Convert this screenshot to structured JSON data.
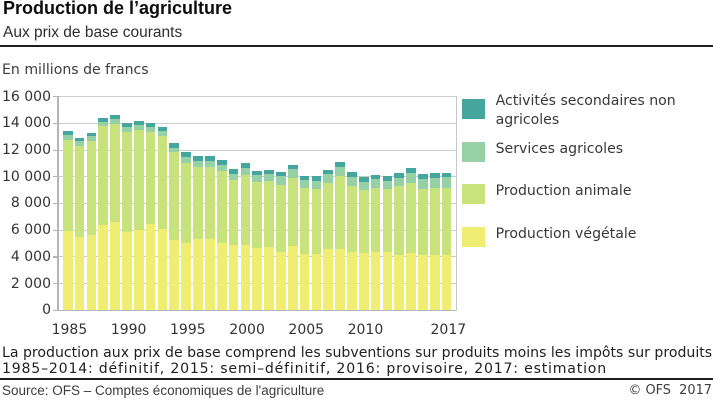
{
  "header": {
    "title": "Production de l’agriculture",
    "subtitle": "Aux prix de base courants",
    "unit_label": "En millions de francs"
  },
  "chart_data": {
    "type": "bar",
    "stacked": true,
    "title": "Production de l’agriculture",
    "subtitle": "Aux prix de base courants",
    "ylabel": "En millions de francs",
    "xlabel": "",
    "ylim": [
      0,
      16000
    ],
    "ytick_step": 2000,
    "ytick_labels": [
      "0",
      "2 000",
      "4 000",
      "6 000",
      "8 000",
      "10 000",
      "12 000",
      "14 000",
      "16 000"
    ],
    "xticks": [
      1985,
      1990,
      1995,
      2000,
      2005,
      2010,
      2017
    ],
    "grid": true,
    "legend_position": "right",
    "categories": [
      1985,
      1986,
      1987,
      1988,
      1989,
      1990,
      1991,
      1992,
      1993,
      1994,
      1995,
      1996,
      1997,
      1998,
      1999,
      2000,
      2001,
      2002,
      2003,
      2004,
      2005,
      2006,
      2007,
      2008,
      2009,
      2010,
      2011,
      2012,
      2013,
      2014,
      2015,
      2016,
      2017
    ],
    "series": [
      {
        "name": "Production végétale",
        "color": "#f0ed73",
        "values": [
          5900,
          5510,
          5645,
          6380,
          6580,
          5870,
          5980,
          6445,
          6055,
          5255,
          5030,
          5320,
          5320,
          5045,
          4875,
          4870,
          4635,
          4705,
          4345,
          4790,
          4205,
          4200,
          4560,
          4620,
          4390,
          4300,
          4345,
          4330,
          4105,
          4275,
          4135,
          4160,
          4160
        ]
      },
      {
        "name": "Production animale",
        "color": "#c8e27c",
        "values": [
          6830,
          6800,
          7060,
          7380,
          7360,
          7470,
          7545,
          6920,
          6975,
          6590,
          6010,
          5400,
          5415,
          5410,
          4905,
          5235,
          4965,
          4965,
          5030,
          5090,
          4945,
          4900,
          4955,
          5455,
          4950,
          4710,
          4775,
          4725,
          5180,
          5275,
          4965,
          4960,
          5015
        ]
      },
      {
        "name": "Services agricoles",
        "color": "#96d0a5",
        "values": [
          370,
          330,
          350,
          350,
          365,
          360,
          350,
          350,
          360,
          335,
          435,
          435,
          435,
          435,
          435,
          575,
          510,
          520,
          645,
          660,
          575,
          605,
          670,
          650,
          605,
          620,
          675,
          620,
          635,
          740,
          725,
          795,
          775
        ]
      },
      {
        "name": "Activités secondaires non agricoles",
        "color": "#45a69d",
        "values": [
          290,
          280,
          255,
          270,
          285,
          340,
          325,
          325,
          340,
          320,
          365,
          395,
          410,
          375,
          375,
          360,
          320,
          330,
          320,
          310,
          350,
          340,
          350,
          370,
          370,
          325,
          325,
          350,
          340,
          365,
          345,
          340,
          355
        ]
      }
    ]
  },
  "legend": {
    "items": [
      {
        "label": "Activités secondaires non agricoles",
        "color": "#45a69d"
      },
      {
        "label": "Services agricoles",
        "color": "#96d0a5"
      },
      {
        "label": "Production animale",
        "color": "#c8e27c"
      },
      {
        "label": "Production végétale",
        "color": "#f0ed73"
      }
    ]
  },
  "footer": {
    "note_line1": "La production aux prix de base comprend les subventions sur produits moins les impôts sur produits",
    "note_line2": "1985–2014: définitif, 2015: semi–définitif, 2016: provisoire, 2017: estimation",
    "source": "Source: OFS – Comptes économiques de l'agriculture",
    "copyright": "© OFS  2017"
  }
}
